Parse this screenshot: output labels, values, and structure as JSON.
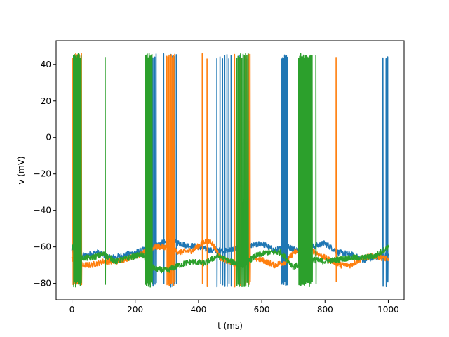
{
  "chart_data": {
    "type": "line",
    "xlabel": "t (ms)",
    "ylabel": "v (mV)",
    "xlim": [
      -50,
      1050
    ],
    "ylim": [
      -89,
      53
    ],
    "xticks": [
      0,
      200,
      400,
      600,
      800,
      1000
    ],
    "yticks": [
      -80,
      -60,
      -40,
      -20,
      0,
      20,
      40
    ],
    "grid": false,
    "legend": "none",
    "series": [
      {
        "color": "#1f77b4",
        "baseline": [
          [
            0,
            -62
          ],
          [
            40,
            -65
          ],
          [
            80,
            -63
          ],
          [
            120,
            -66
          ],
          [
            160,
            -65
          ],
          [
            200,
            -63
          ],
          [
            240,
            -61
          ],
          [
            280,
            -58
          ],
          [
            320,
            -57
          ],
          [
            360,
            -59
          ],
          [
            400,
            -60
          ],
          [
            440,
            -62
          ],
          [
            480,
            -62
          ],
          [
            520,
            -61
          ],
          [
            560,
            -60
          ],
          [
            600,
            -58
          ],
          [
            640,
            -62
          ],
          [
            680,
            -60
          ],
          [
            720,
            -62
          ],
          [
            760,
            -60
          ],
          [
            800,
            -58
          ],
          [
            840,
            -63
          ],
          [
            880,
            -64
          ],
          [
            920,
            -67
          ],
          [
            960,
            -66
          ],
          [
            1000,
            -64
          ]
        ],
        "spikes": [
          256,
          262,
          266,
          290,
          305,
          312,
          318,
          324,
          330,
          458,
          468,
          476,
          483,
          490,
          496,
          503,
          531,
          548,
          663,
          666,
          669,
          672,
          675,
          678,
          681,
          983,
          993,
          998
        ]
      },
      {
        "color": "#ff7f0e",
        "baseline": [
          [
            0,
            -67
          ],
          [
            30,
            -70
          ],
          [
            60,
            -70
          ],
          [
            100,
            -68
          ],
          [
            140,
            -68
          ],
          [
            180,
            -66
          ],
          [
            220,
            -64
          ],
          [
            260,
            -60
          ],
          [
            300,
            -60
          ],
          [
            340,
            -63
          ],
          [
            380,
            -62
          ],
          [
            420,
            -57
          ],
          [
            440,
            -57
          ],
          [
            470,
            -66
          ],
          [
            520,
            -70
          ],
          [
            560,
            -66
          ],
          [
            600,
            -67
          ],
          [
            640,
            -70
          ],
          [
            680,
            -68
          ],
          [
            700,
            -63
          ],
          [
            760,
            -62
          ],
          [
            800,
            -66
          ],
          [
            850,
            -70
          ],
          [
            880,
            -70
          ],
          [
            920,
            -66
          ],
          [
            960,
            -65
          ],
          [
            1000,
            -67
          ]
        ],
        "spikes": [
          3,
          6,
          9,
          12,
          15,
          18,
          21,
          24,
          27,
          30,
          300,
          304,
          307,
          311,
          314,
          318,
          321,
          325,
          412,
          427,
          514,
          532,
          547,
          553,
          559,
          563,
          835
        ]
      },
      {
        "color": "#2ca02c",
        "baseline": [
          [
            0,
            -60
          ],
          [
            30,
            -66
          ],
          [
            60,
            -66
          ],
          [
            100,
            -64
          ],
          [
            140,
            -68
          ],
          [
            180,
            -66
          ],
          [
            220,
            -64
          ],
          [
            260,
            -72
          ],
          [
            300,
            -73
          ],
          [
            340,
            -70
          ],
          [
            380,
            -68
          ],
          [
            420,
            -69
          ],
          [
            460,
            -65
          ],
          [
            500,
            -68
          ],
          [
            540,
            -70
          ],
          [
            580,
            -65
          ],
          [
            620,
            -63
          ],
          [
            660,
            -63
          ],
          [
            700,
            -71
          ],
          [
            760,
            -67
          ],
          [
            800,
            -68
          ],
          [
            840,
            -67
          ],
          [
            880,
            -66
          ],
          [
            920,
            -66
          ],
          [
            960,
            -65
          ],
          [
            1000,
            -60
          ]
        ],
        "spikes": [
          5,
          8,
          11,
          14,
          17,
          20,
          23,
          26,
          29,
          105,
          232,
          235,
          238,
          241,
          244,
          247,
          250,
          253,
          521,
          525,
          529,
          533,
          537,
          541,
          545,
          549,
          553,
          557,
          717,
          720,
          723,
          726,
          729,
          732,
          735,
          738,
          741,
          744,
          747,
          750,
          753,
          756,
          759,
          771
        ]
      }
    ]
  }
}
